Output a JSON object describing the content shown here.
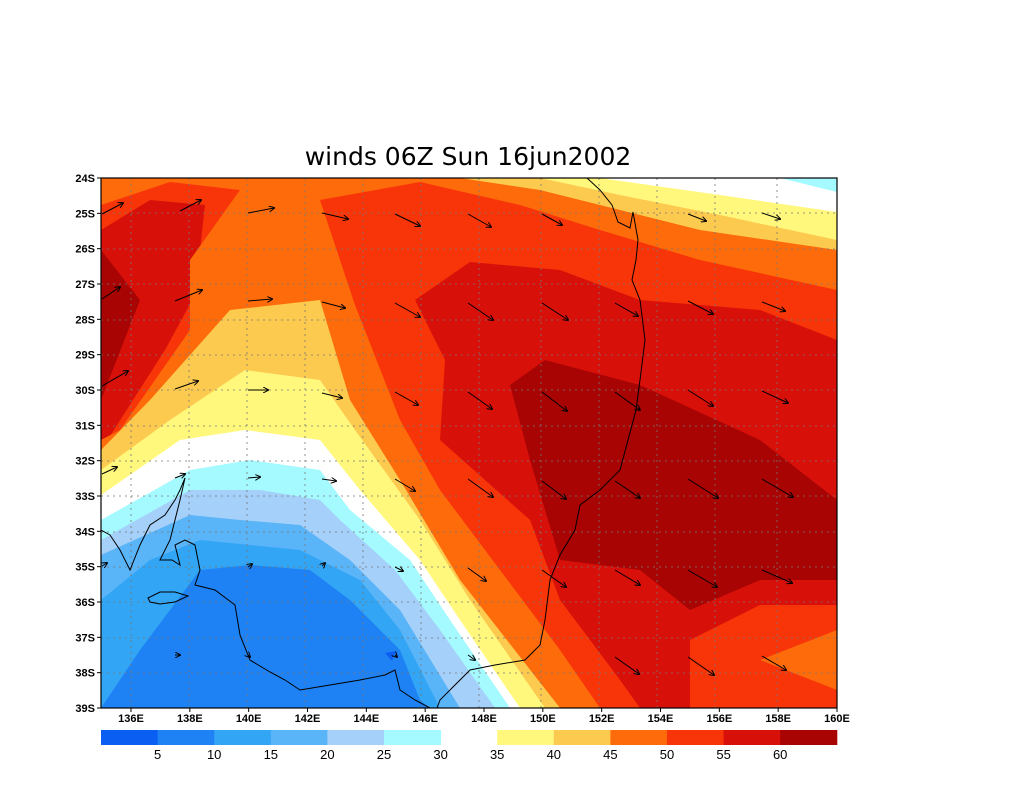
{
  "title": "winds 06Z Sun 16jun2002",
  "lat_ticks": [
    "24S",
    "25S",
    "26S",
    "27S",
    "28S",
    "29S",
    "30S",
    "31S",
    "32S",
    "33S",
    "34S",
    "35S",
    "36S",
    "37S",
    "38S",
    "39S"
  ],
  "lon_ticks": [
    "136E",
    "138E",
    "140E",
    "142E",
    "144E",
    "146E",
    "148E",
    "150E",
    "152E",
    "154E",
    "156E",
    "158E",
    "160E"
  ],
  "colorbar": {
    "labels": [
      "5",
      "10",
      "15",
      "20",
      "25",
      "30",
      "35",
      "40",
      "45",
      "50",
      "55",
      "60"
    ],
    "colors": [
      "#0a5ff2",
      "#1e82f4",
      "#32a5f5",
      "#5ab4f8",
      "#a5d0fa",
      "#a5faff",
      "#ffffff",
      "#fff87d",
      "#fdca50",
      "#fe6b0b",
      "#f83508",
      "#d8100a",
      "#a80404"
    ]
  },
  "contour_colors": {
    "c5": "#0a5ff2",
    "c10": "#1e82f4",
    "c15": "#32a5f5",
    "c20": "#5ab4f8",
    "c25": "#a5d0fa",
    "c30": "#a5faff",
    "c35": "#ffffff",
    "c40": "#fff87d",
    "c45": "#fdca50",
    "c50": "#fe6b0b",
    "c55": "#f83508",
    "c60": "#d8100a",
    "c65": "#a80404"
  }
}
